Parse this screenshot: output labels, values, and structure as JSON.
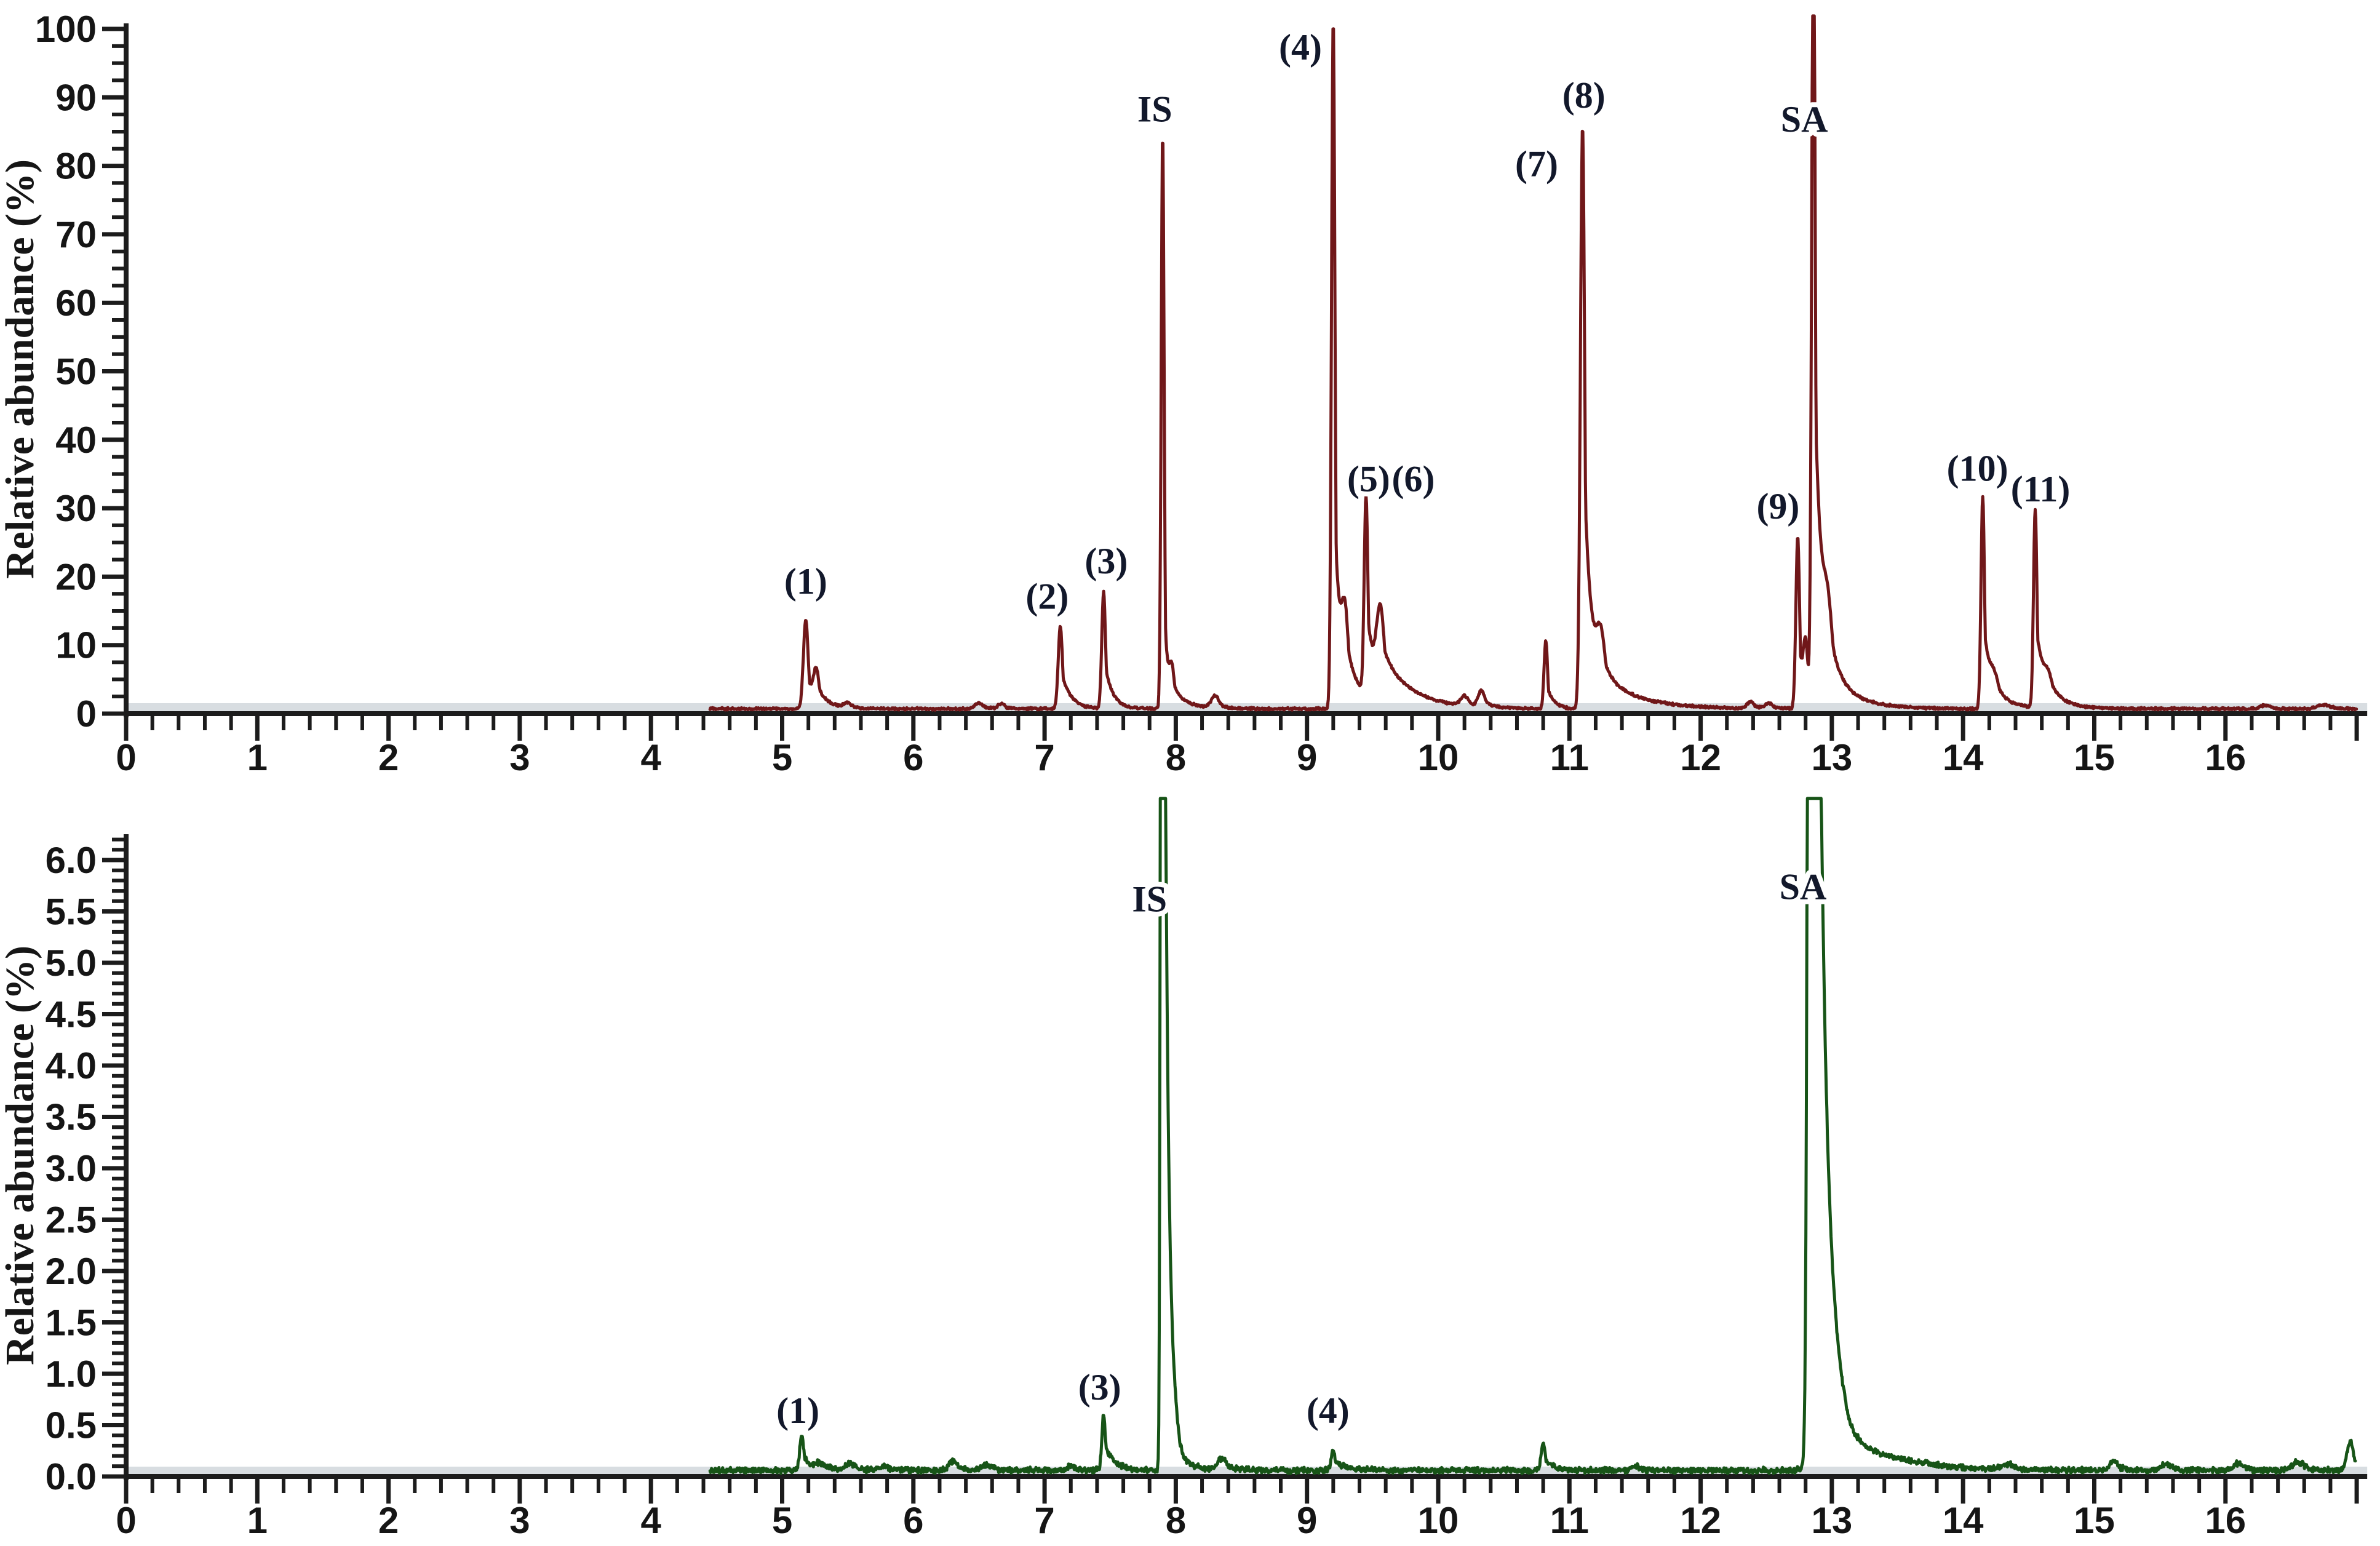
{
  "figure": {
    "background": "#ffffff",
    "axis_color": "#1c1c1c",
    "baseline_band_color": "#d8dde1"
  },
  "chart_data": [
    {
      "type": "line",
      "id": "top-chromatogram",
      "title": "",
      "xlabel": "",
      "ylabel": "Relative abundance (%)",
      "line_color": "#701719",
      "label_color": "#12182b",
      "x_range": [
        0,
        17.08
      ],
      "y_range": [
        0,
        100
      ],
      "y_clip": 101.9,
      "x_major_tick_step": 1,
      "x_minor_tick_step": 0.2,
      "y_major_tick_step": 10,
      "y_minor_tick_step": 2.5,
      "x_tick_labels": [
        "0",
        "1",
        "2",
        "3",
        "4",
        "5",
        "6",
        "7",
        "8",
        "9",
        "10",
        "11",
        "12",
        "13",
        "14",
        "15",
        "16"
      ],
      "y_tick_labels": [
        "0",
        "10",
        "20",
        "30",
        "40",
        "50",
        "60",
        "70",
        "80",
        "90",
        "100"
      ],
      "grid": false,
      "legend": null,
      "trace_start": 4.45,
      "trace_end": 17.0,
      "baseline_level": 0.7,
      "noise_amplitude": 0.26,
      "noise_seed": 7,
      "peaks": [
        {
          "label": "(1)",
          "t": 5.18,
          "h": 13,
          "s": 0.018,
          "tau": 0.06,
          "k": 0.45
        },
        {
          "label": null,
          "t": 5.26,
          "h": 4.5,
          "s": 0.02,
          "tau": 0.09,
          "k": 0.5
        },
        {
          "label": null,
          "t": 5.5,
          "h": 0.7,
          "s": 0.03,
          "tau": 0.06,
          "k": 0.5
        },
        {
          "label": null,
          "t": 6.5,
          "h": 0.9,
          "s": 0.03,
          "tau": 0.06,
          "k": 0.5
        },
        {
          "label": null,
          "t": 6.67,
          "h": 0.7,
          "s": 0.025,
          "tau": 0.05,
          "k": 0.5
        },
        {
          "label": "(2)",
          "t": 7.12,
          "h": 12,
          "s": 0.016,
          "tau": 0.07,
          "k": 0.5
        },
        {
          "label": "(3)",
          "t": 7.45,
          "h": 17,
          "s": 0.014,
          "tau": 0.06,
          "k": 0.45
        },
        {
          "label": "IS",
          "t": 7.9,
          "h": 84,
          "s": 0.011,
          "tau": 0.026,
          "k": 0.3
        },
        {
          "label": null,
          "t": 7.97,
          "h": 5,
          "s": 0.02,
          "tau": 0.11,
          "k": 0.6
        },
        {
          "label": null,
          "t": 8.3,
          "h": 1.8,
          "s": 0.03,
          "tau": 0.06,
          "k": 0.5
        },
        {
          "label": "(4)",
          "t": 9.2,
          "h": 100.5,
          "s": 0.013,
          "tau": 0.05,
          "k": 0.35
        },
        {
          "label": null,
          "t": 9.29,
          "h": 10,
          "s": 0.025,
          "tau": 0.14,
          "k": 0.6
        },
        {
          "label": "(5)",
          "t": 9.45,
          "h": 29,
          "s": 0.014,
          "tau": 0.06,
          "k": 0.5
        },
        {
          "label": "(6)",
          "t": 9.56,
          "h": 12,
          "s": 0.03,
          "tau": 0.24,
          "k": 0.6
        },
        {
          "label": null,
          "t": 10.2,
          "h": 1.4,
          "s": 0.03,
          "tau": 0.06,
          "k": 0.5
        },
        {
          "label": null,
          "t": 10.33,
          "h": 2.3,
          "s": 0.025,
          "tau": 0.06,
          "k": 0.5
        },
        {
          "label": "(7)",
          "t": 10.82,
          "h": 10,
          "s": 0.013,
          "tau": 0.05,
          "k": 0.4
        },
        {
          "label": "(8)",
          "t": 11.1,
          "h": 85,
          "s": 0.016,
          "tau": 0.06,
          "k": 0.5
        },
        {
          "label": null,
          "t": 11.24,
          "h": 8,
          "s": 0.035,
          "tau": 0.28,
          "k": 0.6
        },
        {
          "label": null,
          "t": 12.38,
          "h": 1,
          "s": 0.025,
          "tau": 0.06,
          "k": 0.5
        },
        {
          "label": null,
          "t": 12.52,
          "h": 0.8,
          "s": 0.025,
          "tau": 0.06,
          "k": 0.5
        },
        {
          "label": "(9)",
          "t": 12.74,
          "h": 25,
          "s": 0.014,
          "tau": 0.05,
          "k": 0.45
        },
        {
          "label": null,
          "t": 12.8,
          "h": 7,
          "s": 0.016,
          "tau": 0.06,
          "k": 0.5
        },
        {
          "label": "SA",
          "t": 12.86,
          "h": 118,
          "s": 0.013,
          "tau": 0.06,
          "k": 0.45
        },
        {
          "label": null,
          "t": 12.97,
          "h": 9,
          "s": 0.035,
          "tau": 0.2,
          "k": 0.6
        },
        {
          "label": "(10)",
          "t": 14.15,
          "h": 31,
          "s": 0.013,
          "tau": 0.06,
          "k": 0.45
        },
        {
          "label": null,
          "t": 14.24,
          "h": 2.5,
          "s": 0.03,
          "tau": 0.16,
          "k": 0.6
        },
        {
          "label": "(11)",
          "t": 14.55,
          "h": 29,
          "s": 0.013,
          "tau": 0.07,
          "k": 0.45
        },
        {
          "label": null,
          "t": 14.65,
          "h": 2.5,
          "s": 0.03,
          "tau": 0.16,
          "k": 0.6
        },
        {
          "label": null,
          "t": 16.3,
          "h": 0.5,
          "s": 0.04,
          "tau": 0.06,
          "k": 0.5
        },
        {
          "label": null,
          "t": 16.75,
          "h": 0.6,
          "s": 0.05,
          "tau": 0.06,
          "k": 0.5
        }
      ],
      "annotations": [
        {
          "text": "(1)",
          "t": 5.18,
          "y": 17.5
        },
        {
          "text": "(2)",
          "t": 7.02,
          "y": 15.3
        },
        {
          "text": "(3)",
          "t": 7.47,
          "y": 20.5
        },
        {
          "text": "IS",
          "t": 7.84,
          "y": 86.5
        },
        {
          "text": "(4)",
          "t": 8.95,
          "y": 95.5
        },
        {
          "text": "(5)",
          "t": 9.47,
          "y": 32.5
        },
        {
          "text": "(6)",
          "t": 9.81,
          "y": 32.5
        },
        {
          "text": "(7)",
          "t": 10.75,
          "y": 78.5
        },
        {
          "text": "(8)",
          "t": 11.11,
          "y": 88.5
        },
        {
          "text": "(9)",
          "t": 12.59,
          "y": 28.5
        },
        {
          "text": "SA",
          "t": 12.79,
          "y": 85
        },
        {
          "text": "(10)",
          "t": 14.11,
          "y": 34
        },
        {
          "text": "(11)",
          "t": 14.59,
          "y": 31
        }
      ]
    },
    {
      "type": "line",
      "id": "bottom-chromatogram",
      "title": "",
      "xlabel": "",
      "ylabel": "Relative abundance (%)",
      "line_color": "#175417",
      "label_color": "#12182b",
      "x_range": [
        0,
        17.08
      ],
      "y_range": [
        0,
        6.2
      ],
      "y_clip": 6.6,
      "x_major_tick_step": 1,
      "x_minor_tick_step": 0.2,
      "y_major_tick_step": 0.5,
      "y_minor_tick_step": 0.1,
      "x_tick_labels": [
        "0",
        "1",
        "2",
        "3",
        "4",
        "5",
        "6",
        "7",
        "8",
        "9",
        "10",
        "11",
        "12",
        "13",
        "14",
        "15",
        "16"
      ],
      "y_tick_labels": [
        "0.0",
        "0.5",
        "1.0",
        "1.5",
        "2.0",
        "2.5",
        "3.0",
        "3.5",
        "4.0",
        "4.5",
        "5.0",
        "5.5",
        "6.0"
      ],
      "grid": false,
      "legend": null,
      "trace_start": 4.45,
      "trace_end": 16.99,
      "baseline_level": 0.06,
      "noise_amplitude": 0.042,
      "noise_seed": 23,
      "peaks": [
        {
          "label": "(1)",
          "t": 5.15,
          "h": 0.33,
          "s": 0.016,
          "tau": 0.08,
          "k": 0.45
        },
        {
          "label": null,
          "t": 5.29,
          "h": 0.05,
          "s": 0.03,
          "tau": 0.1,
          "k": 0.6
        },
        {
          "label": null,
          "t": 5.52,
          "h": 0.07,
          "s": 0.03,
          "tau": 0.06,
          "k": 0.5
        },
        {
          "label": null,
          "t": 5.78,
          "h": 0.05,
          "s": 0.03,
          "tau": 0.06,
          "k": 0.5
        },
        {
          "label": null,
          "t": 6.3,
          "h": 0.09,
          "s": 0.03,
          "tau": 0.06,
          "k": 0.5
        },
        {
          "label": null,
          "t": 6.56,
          "h": 0.05,
          "s": 0.04,
          "tau": 0.06,
          "k": 0.5
        },
        {
          "label": null,
          "t": 7.2,
          "h": 0.04,
          "s": 0.03,
          "tau": 0.06,
          "k": 0.5
        },
        {
          "label": "(3)",
          "t": 7.45,
          "h": 0.55,
          "s": 0.013,
          "tau": 0.08,
          "k": 0.45
        },
        {
          "label": "IS",
          "t": 7.9,
          "h": 40,
          "s": 0.01,
          "tau": 0.03,
          "k": 0.35
        },
        {
          "label": null,
          "t": 7.99,
          "h": 0.22,
          "s": 0.03,
          "tau": 0.13,
          "k": 0.6
        },
        {
          "label": null,
          "t": 8.35,
          "h": 0.11,
          "s": 0.03,
          "tau": 0.09,
          "k": 0.5
        },
        {
          "label": "(4)",
          "t": 9.2,
          "h": 0.19,
          "s": 0.016,
          "tau": 0.09,
          "k": 0.5
        },
        {
          "label": null,
          "t": 10.8,
          "h": 0.27,
          "s": 0.015,
          "tau": 0.07,
          "k": 0.45
        },
        {
          "label": null,
          "t": 11.5,
          "h": 0.04,
          "s": 0.03,
          "tau": 0.06,
          "k": 0.5
        },
        {
          "label": "SA",
          "t": 12.85,
          "h": 40,
          "s": 0.02,
          "tau": 0.06,
          "k": 0.5
        },
        {
          "label": null,
          "t": 13.03,
          "h": 0.5,
          "s": 0.1,
          "tau": 0.38,
          "k": 0.8
        },
        {
          "label": null,
          "t": 14.35,
          "h": 0.05,
          "s": 0.04,
          "tau": 0.06,
          "k": 0.5
        },
        {
          "label": null,
          "t": 15.15,
          "h": 0.09,
          "s": 0.03,
          "tau": 0.07,
          "k": 0.5
        },
        {
          "label": null,
          "t": 15.55,
          "h": 0.06,
          "s": 0.04,
          "tau": 0.06,
          "k": 0.5
        },
        {
          "label": null,
          "t": 16.1,
          "h": 0.07,
          "s": 0.04,
          "tau": 0.06,
          "k": 0.5
        },
        {
          "label": null,
          "t": 16.55,
          "h": 0.08,
          "s": 0.05,
          "tau": 0.07,
          "k": 0.5
        },
        {
          "label": null,
          "t": 16.95,
          "h": 0.28,
          "s": 0.025,
          "tau": 0.05,
          "k": 0.5
        }
      ],
      "annotations": [
        {
          "text": "(1)",
          "t": 5.12,
          "y": 0.52
        },
        {
          "text": "(3)",
          "t": 7.42,
          "y": 0.75
        },
        {
          "text": "IS",
          "t": 7.8,
          "y": 5.5
        },
        {
          "text": "(4)",
          "t": 9.16,
          "y": 0.52
        },
        {
          "text": "SA",
          "t": 12.78,
          "y": 5.62
        }
      ]
    }
  ]
}
